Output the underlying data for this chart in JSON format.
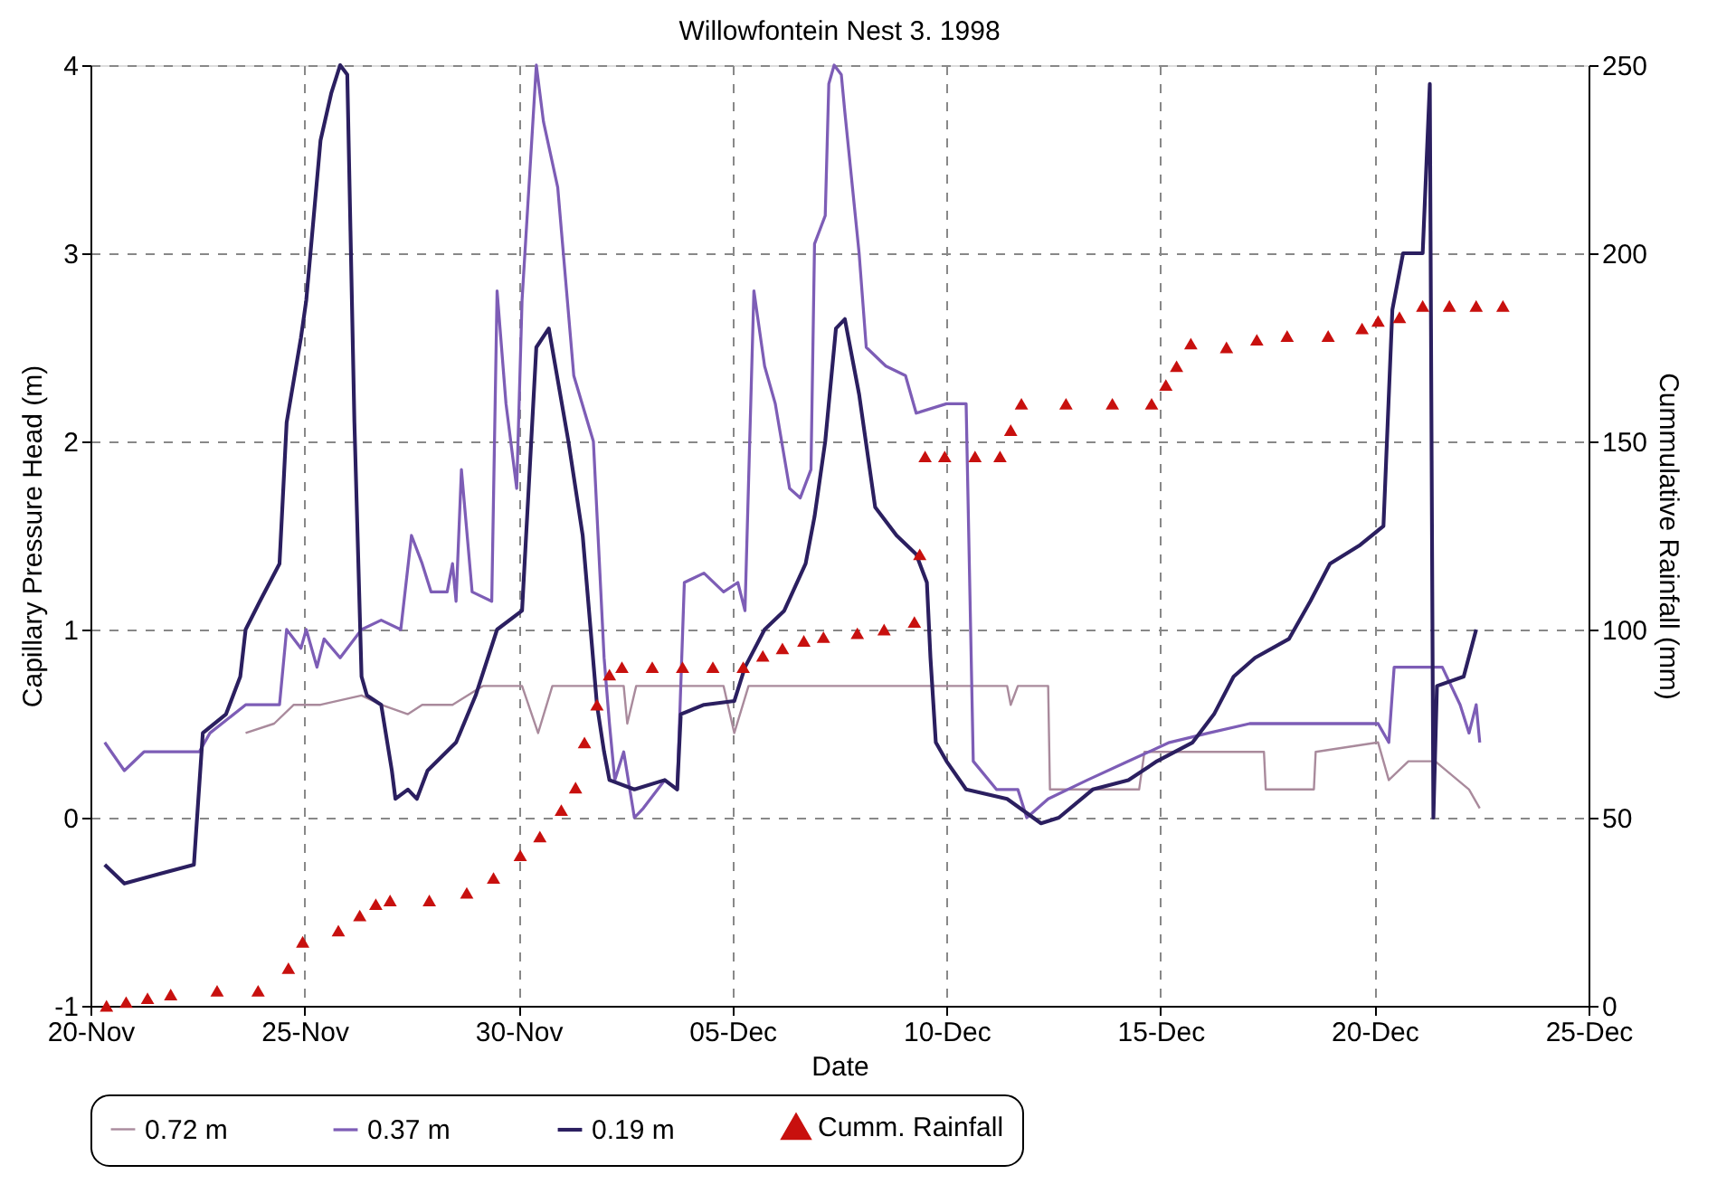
{
  "chart_data": {
    "type": "line",
    "title": "Willowfontein Nest 3. 1998",
    "xlabel": "Date",
    "ylabel": "Capillary Pressure Head (m)",
    "y2label": "Cummulative Rainfall (mm)",
    "xlim": [
      "1998-11-20",
      "1998-12-25"
    ],
    "xticks": [
      {
        "value": "1998-11-20",
        "label": "20-Nov"
      },
      {
        "value": "1998-11-25",
        "label": "25-Nov"
      },
      {
        "value": "1998-11-30",
        "label": "30-Nov"
      },
      {
        "value": "1998-12-05",
        "label": "05-Dec"
      },
      {
        "value": "1998-12-10",
        "label": "10-Dec"
      },
      {
        "value": "1998-12-15",
        "label": "15-Dec"
      },
      {
        "value": "1998-12-20",
        "label": "20-Dec"
      },
      {
        "value": "1998-12-25",
        "label": "25-Dec"
      }
    ],
    "ylim": [
      -1,
      4
    ],
    "yticks": [
      -1,
      0,
      1,
      2,
      3,
      4
    ],
    "y2lim": [
      0,
      250
    ],
    "y2ticks": [
      0,
      50,
      100,
      150,
      200,
      250
    ],
    "grid": true,
    "legend": "bottom",
    "line_style": "solid",
    "series": [
      {
        "name": "0.72 m",
        "type": "line",
        "color": "#a98a9c",
        "x": [
          "1998-11-23T15:00",
          "1998-11-24T07:00",
          "1998-11-24T18:00",
          "1998-11-25T09:00",
          "1998-11-26T08:00",
          "1998-11-26T19:00",
          "1998-11-27T10:00",
          "1998-11-27T18:00",
          "1998-11-28T11:00",
          "1998-11-29T04:00",
          "1998-11-30T02:00",
          "1998-11-30T11:00",
          "1998-11-30T19:00",
          "1998-12-02T11:00",
          "1998-12-02T13:00",
          "1998-12-02T18:00",
          "1998-12-04T19:00",
          "1998-12-05T01:00",
          "1998-12-05T09:00",
          "1998-12-10T00:00",
          "1998-12-11T10:00",
          "1998-12-11T12:00",
          "1998-12-11T16:00",
          "1998-12-12T09:00",
          "1998-12-12T10:00",
          "1998-12-14T12:00",
          "1998-12-14T15:00",
          "1998-12-17T10:00",
          "1998-12-17T11:00",
          "1998-12-18T14:00",
          "1998-12-18T15:00",
          "1998-12-20T02:00",
          "1998-12-20T08:00",
          "1998-12-20T19:00",
          "1998-12-21T10:00",
          "1998-12-22T05:00",
          "1998-12-22T11:00"
        ],
        "values": [
          0.45,
          0.5,
          0.6,
          0.6,
          0.65,
          0.6,
          0.55,
          0.6,
          0.6,
          0.7,
          0.7,
          0.45,
          0.7,
          0.7,
          0.5,
          0.7,
          0.7,
          0.45,
          0.7,
          0.7,
          0.7,
          0.6,
          0.7,
          0.7,
          0.15,
          0.15,
          0.35,
          0.35,
          0.15,
          0.15,
          0.35,
          0.4,
          0.2,
          0.3,
          0.3,
          0.15,
          0.05
        ]
      },
      {
        "name": "0.37 m",
        "type": "line",
        "color": "#7d5db6",
        "x": [
          "1998-11-20T08:00",
          "1998-11-20T19:00",
          "1998-11-21T06:00",
          "1998-11-22T13:00",
          "1998-11-22T19:00",
          "1998-11-23T15:00",
          "1998-11-24T10:00",
          "1998-11-24T14:00",
          "1998-11-24T22:00",
          "1998-11-25T01:00",
          "1998-11-25T07:00",
          "1998-11-25T11:00",
          "1998-11-25T20:00",
          "1998-11-26T08:00",
          "1998-11-26T19:00",
          "1998-11-27T06:00",
          "1998-11-27T12:00",
          "1998-11-27T18:00",
          "1998-11-27T23:00",
          "1998-11-28T08:00",
          "1998-11-28T11:00",
          "1998-11-28T13:00",
          "1998-11-28T16:00",
          "1998-11-28T22:00",
          "1998-11-29T09:00",
          "1998-11-29T12:00",
          "1998-11-29T17:00",
          "1998-11-29T23:00",
          "1998-11-30T02:00",
          "1998-11-30T10:00",
          "1998-11-30T14:00",
          "1998-11-30T22:00",
          "1998-12-01T07:00",
          "1998-12-01T18:00",
          "1998-12-02T00:00",
          "1998-12-02T03:00",
          "1998-12-02T06:00",
          "1998-12-02T11:00",
          "1998-12-02T17:00",
          "1998-12-02T22:00",
          "1998-12-03T10:00",
          "1998-12-03T17:00",
          "1998-12-03T21:00",
          "1998-12-04T08:00",
          "1998-12-04T19:00",
          "1998-12-05T03:00",
          "1998-12-05T07:00",
          "1998-12-05T12:00",
          "1998-12-05T18:00",
          "1998-12-06T00:00",
          "1998-12-06T08:00",
          "1998-12-06T14:00",
          "1998-12-06T20:00",
          "1998-12-06T22:00",
          "1998-12-07T04:00",
          "1998-12-07T06:00",
          "1998-12-07T09:00",
          "1998-12-07T13:00",
          "1998-12-07T15:00",
          "1998-12-07T23:00",
          "1998-12-08T03:00",
          "1998-12-08T14:00",
          "1998-12-09T01:00",
          "1998-12-09T07:00",
          "1998-12-10T00:00",
          "1998-12-10T11:00",
          "1998-12-10T15:00",
          "1998-12-11T04:00",
          "1998-12-11T16:00",
          "1998-12-11T21:00",
          "1998-12-12T09:00",
          "1998-12-13T07:00",
          "1998-12-14T06:00",
          "1998-12-15T05:00",
          "1998-12-16T03:00",
          "1998-12-17T02:00",
          "1998-12-18T00:00",
          "1998-12-19T10:00",
          "1998-12-20T02:00",
          "1998-12-20T08:00",
          "1998-12-20T11:00",
          "1998-12-21T14:00",
          "1998-12-22T00:00",
          "1998-12-22T05:00",
          "1998-12-22T09:00",
          "1998-12-22T11:00"
        ],
        "values": [
          0.4,
          0.25,
          0.35,
          0.35,
          0.45,
          0.6,
          0.6,
          1.0,
          0.9,
          1.0,
          0.8,
          0.95,
          0.85,
          1.0,
          1.05,
          1.0,
          1.5,
          1.35,
          1.2,
          1.2,
          1.35,
          1.15,
          1.85,
          1.2,
          1.15,
          2.8,
          2.2,
          1.75,
          2.75,
          4.0,
          3.7,
          3.35,
          2.35,
          2.0,
          0.85,
          0.5,
          0.2,
          0.35,
          0.0,
          0.05,
          0.2,
          0.15,
          1.25,
          1.3,
          1.2,
          1.25,
          1.1,
          2.8,
          2.4,
          2.2,
          1.75,
          1.7,
          1.85,
          3.05,
          3.2,
          3.9,
          4.0,
          3.95,
          3.75,
          3.0,
          2.5,
          2.4,
          2.35,
          2.15,
          2.2,
          2.2,
          0.3,
          0.15,
          0.15,
          0.0,
          0.1,
          0.2,
          0.3,
          0.4,
          0.45,
          0.5,
          0.5,
          0.5,
          0.5,
          0.4,
          0.8,
          0.8,
          0.6,
          0.45,
          0.6,
          0.4
        ]
      },
      {
        "name": "0.19 m",
        "type": "line",
        "color": "#2b1f60",
        "x": [
          "1998-11-20T08:00",
          "1998-11-20T19:00",
          "1998-11-21T14:00",
          "1998-11-22T10:00",
          "1998-11-22T15:00",
          "1998-11-23T04:00",
          "1998-11-23T12:00",
          "1998-11-23T15:00",
          "1998-11-23T23:00",
          "1998-11-24T10:00",
          "1998-11-24T14:00",
          "1998-11-24T22:00",
          "1998-11-25T01:00",
          "1998-11-25T09:00",
          "1998-11-25T15:00",
          "1998-11-25T20:00",
          "1998-11-26T00:00",
          "1998-11-26T04:00",
          "1998-11-26T08:00",
          "1998-11-26T11:00",
          "1998-11-26T19:00",
          "1998-11-27T01:00",
          "1998-11-27T03:00",
          "1998-11-27T10:00",
          "1998-11-27T15:00",
          "1998-11-27T21:00",
          "1998-11-28T13:00",
          "1998-11-29T00:00",
          "1998-11-29T12:00",
          "1998-11-30T02:00",
          "1998-11-30T10:00",
          "1998-11-30T17:00",
          "1998-12-01T04:00",
          "1998-12-01T12:00",
          "1998-12-01T20:00",
          "1998-12-02T00:00",
          "1998-12-02T03:00",
          "1998-12-02T17:00",
          "1998-12-03T10:00",
          "1998-12-03T17:00",
          "1998-12-03T19:00",
          "1998-12-04T08:00",
          "1998-12-05T01:00",
          "1998-12-05T07:00",
          "1998-12-05T18:00",
          "1998-12-06T05:00",
          "1998-12-06T17:00",
          "1998-12-06T22:00",
          "1998-12-07T04:00",
          "1998-12-07T10:00",
          "1998-12-07T15:00",
          "1998-12-07T23:00",
          "1998-12-08T08:00",
          "1998-12-08T20:00",
          "1998-12-09T07:00",
          "1998-12-09T13:00",
          "1998-12-09T15:00",
          "1998-12-09T18:00",
          "1998-12-10T00:00",
          "1998-12-10T11:00",
          "1998-12-11T10:00",
          "1998-12-12T05:00",
          "1998-12-12T15:00",
          "1998-12-13T10:00",
          "1998-12-14T06:00",
          "1998-12-14T22:00",
          "1998-12-15T18:00",
          "1998-12-16T06:00",
          "1998-12-16T17:00",
          "1998-12-17T05:00",
          "1998-12-18T00:00",
          "1998-12-18T12:00",
          "1998-12-18T23:00",
          "1998-12-19T16:00",
          "1998-12-20T05:00",
          "1998-12-20T10:00",
          "1998-12-20T16:00",
          "1998-12-21T03:00",
          "1998-12-21T07:00",
          "1998-12-21T09:00",
          "1998-12-21T11:00",
          "1998-12-22T02:00",
          "1998-12-22T09:00"
        ],
        "values": [
          -0.25,
          -0.35,
          -0.3,
          -0.25,
          0.45,
          0.55,
          0.75,
          1.0,
          1.15,
          1.35,
          2.1,
          2.55,
          2.75,
          3.6,
          3.85,
          4.0,
          3.95,
          2.1,
          0.75,
          0.65,
          0.6,
          0.25,
          0.1,
          0.15,
          0.1,
          0.25,
          0.4,
          0.65,
          1.0,
          1.1,
          2.5,
          2.6,
          2.0,
          1.5,
          0.6,
          0.35,
          0.2,
          0.15,
          0.2,
          0.15,
          0.55,
          0.6,
          0.62,
          0.8,
          1.0,
          1.1,
          1.35,
          1.6,
          2.0,
          2.6,
          2.65,
          2.25,
          1.65,
          1.5,
          1.4,
          1.25,
          0.85,
          0.4,
          0.3,
          0.15,
          0.1,
          -0.03,
          0.0,
          0.15,
          0.2,
          0.3,
          0.4,
          0.55,
          0.75,
          0.85,
          0.95,
          1.15,
          1.35,
          1.45,
          1.55,
          2.7,
          3.0,
          3.0,
          3.9,
          0.0,
          0.7,
          0.75,
          1.0
        ]
      },
      {
        "name": "Cumm. Rainfall",
        "type": "scatter",
        "axis": "y2",
        "marker": "triangle",
        "color": "#c8100e",
        "x": [
          "1998-11-20T09:00",
          "1998-11-20T20:00",
          "1998-11-21T08:00",
          "1998-11-21T21:00",
          "1998-11-22T23:00",
          "1998-11-23T22:00",
          "1998-11-24T15:00",
          "1998-11-24T23:00",
          "1998-11-25T19:00",
          "1998-11-26T07:00",
          "1998-11-26T16:00",
          "1998-11-27T00:00",
          "1998-11-27T22:00",
          "1998-11-28T19:00",
          "1998-11-29T10:00",
          "1998-11-30T01:00",
          "1998-11-30T12:00",
          "1998-12-01T00:00",
          "1998-12-01T08:00",
          "1998-12-01T13:00",
          "1998-12-01T20:00",
          "1998-12-02T03:00",
          "1998-12-02T10:00",
          "1998-12-03T03:00",
          "1998-12-03T20:00",
          "1998-12-04T13:00",
          "1998-12-05T06:00",
          "1998-12-05T17:00",
          "1998-12-06T04:00",
          "1998-12-06T16:00",
          "1998-12-07T03:00",
          "1998-12-07T22:00",
          "1998-12-08T13:00",
          "1998-12-09T06:00",
          "1998-12-09T09:00",
          "1998-12-09T12:00",
          "1998-12-09T23:00",
          "1998-12-10T16:00",
          "1998-12-11T06:00",
          "1998-12-11T12:00",
          "1998-12-11T18:00",
          "1998-12-12T19:00",
          "1998-12-13T21:00",
          "1998-12-14T19:00",
          "1998-12-15T03:00",
          "1998-12-15T09:00",
          "1998-12-15T17:00",
          "1998-12-16T13:00",
          "1998-12-17T06:00",
          "1998-12-17T23:00",
          "1998-12-18T22:00",
          "1998-12-19T17:00",
          "1998-12-20T02:00",
          "1998-12-20T14:00",
          "1998-12-21T03:00",
          "1998-12-21T18:00",
          "1998-12-22T09:00",
          "1998-12-23T00:00"
        ],
        "values": [
          0,
          1,
          2,
          3,
          4,
          4,
          10,
          17,
          20,
          24,
          27,
          28,
          28,
          30,
          34,
          40,
          45,
          52,
          58,
          70,
          80,
          88,
          90,
          90,
          90,
          90,
          90,
          93,
          95,
          97,
          98,
          99,
          100,
          102,
          120,
          146,
          146,
          146,
          146,
          153,
          160,
          160,
          160,
          160,
          165,
          170,
          176,
          175,
          177,
          178,
          178,
          180,
          182,
          183,
          186,
          186,
          186,
          186
        ]
      }
    ]
  }
}
